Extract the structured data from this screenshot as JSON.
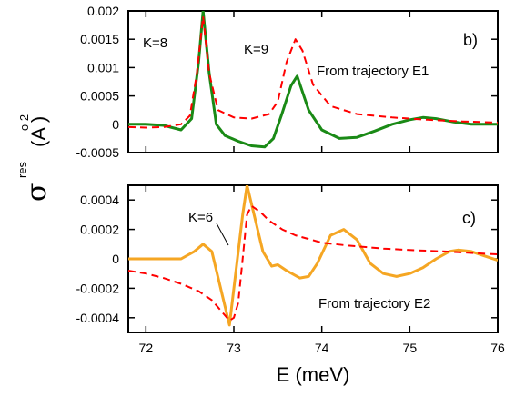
{
  "figure": {
    "xlabel": "E (meV)",
    "ylabel": {
      "symbol": "σ",
      "superscript": "res",
      "unit_exponent": "o 2",
      "unit": "(A )"
    }
  },
  "chart_data": [
    {
      "type": "line",
      "panel_label": "b)",
      "annotation": "From trajectory E1",
      "peak_labels": [
        {
          "text": "K=8",
          "x": 72.58,
          "y": 0.00152
        },
        {
          "text": "K=9",
          "x": 73.45,
          "y": 0.00138
        }
      ],
      "xlim": [
        71.8,
        76.0
      ],
      "ylim": [
        -0.0005,
        0.002
      ],
      "yticks": [
        -0.0005,
        0,
        0.0005,
        0.001,
        0.0015,
        0.002
      ],
      "ytick_labels": [
        "-0.0005",
        "0",
        "0.0005",
        "0.001",
        "0.0015",
        "0.002"
      ],
      "series": [
        {
          "style": "solid",
          "color": "#1a8a16",
          "points": [
            [
              71.8,
              0.0
            ],
            [
              72.0,
              0.0
            ],
            [
              72.2,
              -2e-05
            ],
            [
              72.4,
              -0.0001
            ],
            [
              72.52,
              0.0001
            ],
            [
              72.6,
              0.0011
            ],
            [
              72.65,
              0.002
            ],
            [
              72.72,
              0.0009
            ],
            [
              72.8,
              0.0
            ],
            [
              72.9,
              -0.0002
            ],
            [
              73.05,
              -0.0003
            ],
            [
              73.2,
              -0.00038
            ],
            [
              73.35,
              -0.0004
            ],
            [
              73.45,
              -0.00025
            ],
            [
              73.55,
              0.0002
            ],
            [
              73.65,
              0.00068
            ],
            [
              73.72,
              0.00085
            ],
            [
              73.85,
              0.00025
            ],
            [
              74.0,
              -0.0001
            ],
            [
              74.2,
              -0.00025
            ],
            [
              74.4,
              -0.00023
            ],
            [
              74.6,
              -0.00012
            ],
            [
              74.8,
              0.0
            ],
            [
              75.0,
              8e-05
            ],
            [
              75.15,
              0.00012
            ],
            [
              75.3,
              0.0001
            ],
            [
              75.5,
              4e-05
            ],
            [
              75.7,
              0.0
            ],
            [
              76.0,
              0.0
            ]
          ]
        },
        {
          "style": "dashed",
          "color": "#ff0000",
          "points": [
            [
              71.8,
              -5e-05
            ],
            [
              72.0,
              -6e-05
            ],
            [
              72.2,
              -5e-05
            ],
            [
              72.4,
              0.0
            ],
            [
              72.5,
              0.00015
            ],
            [
              72.58,
              0.0009
            ],
            [
              72.65,
              0.0019
            ],
            [
              72.72,
              0.0009
            ],
            [
              72.82,
              0.00025
            ],
            [
              73.0,
              0.00012
            ],
            [
              73.2,
              0.0001
            ],
            [
              73.4,
              0.00018
            ],
            [
              73.5,
              0.0004
            ],
            [
              73.6,
              0.0011
            ],
            [
              73.7,
              0.0015
            ],
            [
              73.78,
              0.0013
            ],
            [
              73.9,
              0.0007
            ],
            [
              74.1,
              0.00032
            ],
            [
              74.4,
              0.00018
            ],
            [
              74.8,
              0.00012
            ],
            [
              75.2,
              8e-05
            ],
            [
              75.6,
              5e-05
            ],
            [
              76.0,
              3e-05
            ]
          ]
        }
      ]
    },
    {
      "type": "line",
      "panel_label": "c)",
      "annotation": "From trajectory E2",
      "peak_labels": [
        {
          "text": "K=6",
          "x": 72.65,
          "y": 0.00027
        }
      ],
      "xlim": [
        71.8,
        76.0
      ],
      "ylim": [
        -0.0005,
        0.0005
      ],
      "yticks": [
        -0.0004,
        -0.0002,
        0,
        0.0002,
        0.0004
      ],
      "ytick_labels": [
        "-0.0004",
        "-0.0002",
        "0",
        "0.0002",
        "0.0004"
      ],
      "xticks": [
        72,
        73,
        74,
        75,
        76
      ],
      "xtick_labels": [
        "72",
        "73",
        "74",
        "75",
        "76"
      ],
      "series": [
        {
          "style": "solid",
          "color": "#f5a623",
          "points": [
            [
              71.8,
              0.0
            ],
            [
              72.2,
              0.0
            ],
            [
              72.4,
              0.0
            ],
            [
              72.55,
              5e-05
            ],
            [
              72.65,
              0.0001
            ],
            [
              72.75,
              5e-05
            ],
            [
              72.95,
              -0.00045
            ],
            [
              73.1,
              0.0003
            ],
            [
              73.15,
              0.0005
            ],
            [
              73.25,
              0.00025
            ],
            [
              73.33,
              5e-05
            ],
            [
              73.43,
              -5e-05
            ],
            [
              73.5,
              -4e-05
            ],
            [
              73.6,
              -8e-05
            ],
            [
              73.75,
              -0.00013
            ],
            [
              73.85,
              -0.00012
            ],
            [
              73.95,
              -3e-05
            ],
            [
              74.1,
              0.00016
            ],
            [
              74.25,
              0.0002
            ],
            [
              74.4,
              0.00013
            ],
            [
              74.55,
              -3e-05
            ],
            [
              74.7,
              -0.0001
            ],
            [
              74.85,
              -0.00012
            ],
            [
              75.0,
              -0.0001
            ],
            [
              75.15,
              -6e-05
            ],
            [
              75.3,
              0.0
            ],
            [
              75.45,
              5e-05
            ],
            [
              75.55,
              6e-05
            ],
            [
              75.7,
              5e-05
            ],
            [
              75.85,
              2e-05
            ],
            [
              76.0,
              -1e-05
            ]
          ]
        },
        {
          "style": "dashed",
          "color": "#ff0000",
          "points": [
            [
              71.8,
              -8e-05
            ],
            [
              72.0,
              -0.0001
            ],
            [
              72.2,
              -0.00013
            ],
            [
              72.4,
              -0.00017
            ],
            [
              72.6,
              -0.00022
            ],
            [
              72.75,
              -0.00028
            ],
            [
              72.85,
              -0.00035
            ],
            [
              72.95,
              -0.00042
            ],
            [
              73.0,
              -0.0004
            ],
            [
              73.05,
              -0.0003
            ],
            [
              73.1,
              0.0
            ],
            [
              73.15,
              0.0003
            ],
            [
              73.2,
              0.00036
            ],
            [
              73.3,
              0.00032
            ],
            [
              73.4,
              0.00026
            ],
            [
              73.55,
              0.0002
            ],
            [
              73.7,
              0.00016
            ],
            [
              74.0,
              0.00011
            ],
            [
              74.3,
              9e-05
            ],
            [
              74.7,
              7e-05
            ],
            [
              75.0,
              6e-05
            ],
            [
              75.4,
              5e-05
            ],
            [
              75.7,
              4e-05
            ],
            [
              76.0,
              3e-05
            ]
          ]
        }
      ]
    }
  ]
}
